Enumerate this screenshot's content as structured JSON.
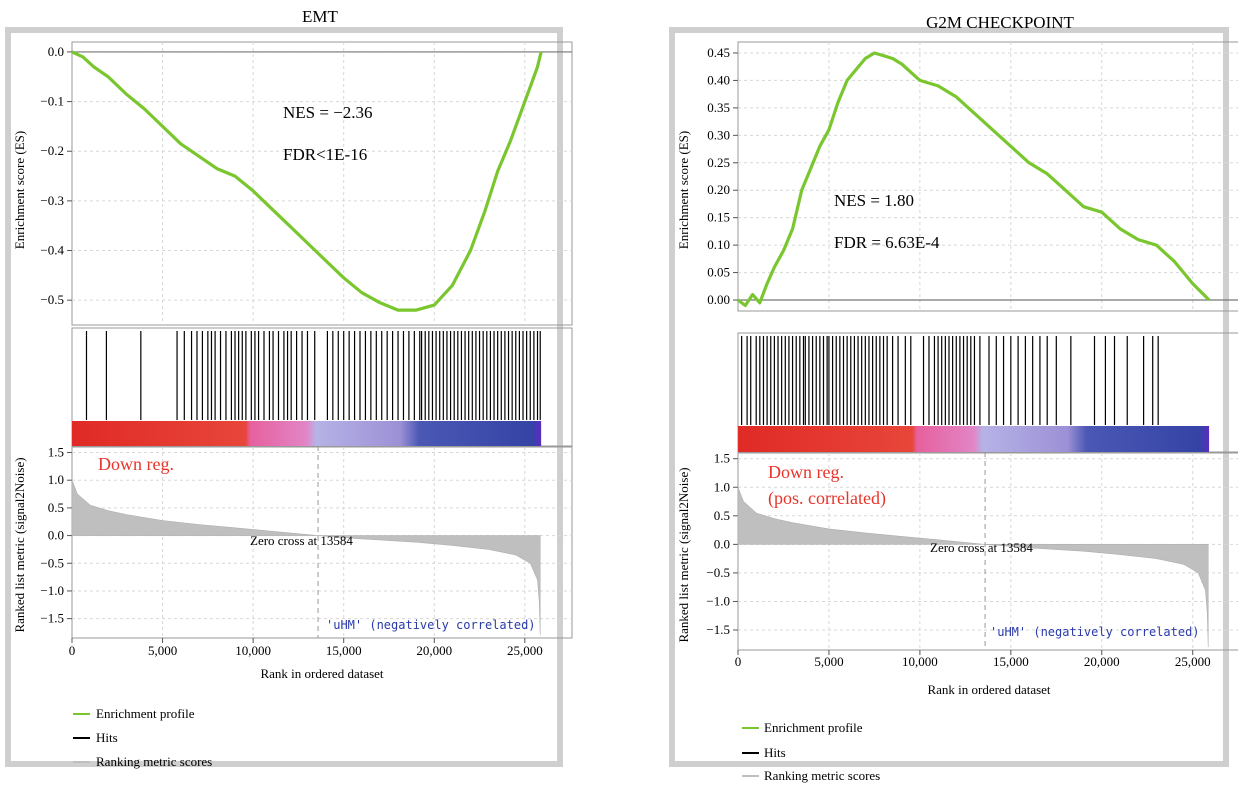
{
  "chart_data": [
    {
      "type": "line",
      "title": "EMT",
      "xlabel": "Rank in ordered dataset",
      "ylabel_es": "Enrichment score (ES)",
      "ylabel_metric": "Ranked list metric (signal2Noise)",
      "x_ticks": [
        "0",
        "5,000",
        "10,000",
        "15,000",
        "20,000",
        "25,000"
      ],
      "es_ticks": [
        "0.0",
        "−0.1",
        "−0.2",
        "−0.3",
        "−0.4",
        "−0.5"
      ],
      "es_ylim": [
        -0.55,
        0.02
      ],
      "metric_ticks": [
        "1.5",
        "1.0",
        "0.5",
        "0.0",
        "−0.5",
        "−1.0",
        "−1.5"
      ],
      "metric_ylim": [
        -1.85,
        1.6
      ],
      "xlim": [
        0,
        26500
      ],
      "nes_text": "NES = −2.36",
      "fdr_text": "FDR<1E-16",
      "reg_text": [
        "Down reg."
      ],
      "zero_cross_text": "Zero cross at 13584",
      "zero_cross": 13584,
      "neg_label": "'uHM' (negatively correlated)",
      "legend": [
        "Enrichment profile",
        "Hits",
        "Ranking metric scores"
      ],
      "colors": {
        "profile": "#7ac62e",
        "hits": "#000000",
        "metric": "#c0bfc0",
        "reg": "#e8352a",
        "neg": "#2a3aa8"
      },
      "es_profile": [
        [
          0,
          0.0
        ],
        [
          600,
          -0.01
        ],
        [
          1200,
          -0.03
        ],
        [
          2000,
          -0.05
        ],
        [
          3000,
          -0.085
        ],
        [
          4000,
          -0.115
        ],
        [
          5000,
          -0.15
        ],
        [
          6000,
          -0.185
        ],
        [
          7000,
          -0.21
        ],
        [
          8000,
          -0.235
        ],
        [
          9000,
          -0.25
        ],
        [
          10000,
          -0.28
        ],
        [
          11000,
          -0.315
        ],
        [
          12000,
          -0.35
        ],
        [
          13000,
          -0.385
        ],
        [
          14000,
          -0.42
        ],
        [
          15000,
          -0.455
        ],
        [
          16000,
          -0.485
        ],
        [
          17000,
          -0.505
        ],
        [
          18000,
          -0.52
        ],
        [
          19000,
          -0.52
        ],
        [
          20000,
          -0.51
        ],
        [
          21000,
          -0.47
        ],
        [
          22000,
          -0.4
        ],
        [
          22800,
          -0.32
        ],
        [
          23500,
          -0.24
        ],
        [
          24200,
          -0.18
        ],
        [
          24800,
          -0.12
        ],
        [
          25300,
          -0.07
        ],
        [
          25700,
          -0.03
        ],
        [
          25900,
          0.0
        ]
      ],
      "hits": [
        800,
        1900,
        3800,
        5800,
        6200,
        6600,
        6900,
        7200,
        7500,
        7700,
        7900,
        8200,
        8500,
        8800,
        9000,
        9200,
        9400,
        9600,
        9900,
        10100,
        10300,
        10600,
        10900,
        11100,
        11400,
        11700,
        11900,
        12100,
        12400,
        12700,
        13000,
        13400,
        14100,
        14400,
        14700,
        15000,
        15300,
        15600,
        15900,
        16200,
        16500,
        16800,
        17100,
        17400,
        17700,
        18000,
        18300,
        18600,
        18900,
        19200,
        19300,
        19500,
        19700,
        19900,
        20100,
        20300,
        20500,
        20700,
        20900,
        21100,
        21300,
        21500,
        21700,
        21900,
        22100,
        22300,
        22500,
        22700,
        22900,
        23100,
        23300,
        23500,
        23700,
        23900,
        24100,
        24300,
        24500,
        24700,
        24900,
        25100,
        25300,
        25500,
        25700,
        25850
      ],
      "metric": [
        [
          0,
          1.0
        ],
        [
          300,
          0.75
        ],
        [
          1000,
          0.55
        ],
        [
          2000,
          0.45
        ],
        [
          3000,
          0.38
        ],
        [
          5000,
          0.27
        ],
        [
          7000,
          0.2
        ],
        [
          9000,
          0.14
        ],
        [
          11000,
          0.08
        ],
        [
          13584,
          0.0
        ],
        [
          16000,
          -0.06
        ],
        [
          19000,
          -0.12
        ],
        [
          21000,
          -0.18
        ],
        [
          23000,
          -0.25
        ],
        [
          24500,
          -0.35
        ],
        [
          25300,
          -0.5
        ],
        [
          25700,
          -0.8
        ],
        [
          25800,
          -1.2
        ],
        [
          25850,
          -1.8
        ]
      ]
    },
    {
      "type": "line",
      "title": "G2M CHECKPOINT",
      "xlabel": "Rank in ordered dataset",
      "ylabel_es": "Enrichment score (ES)",
      "ylabel_metric": "Ranked list metric (signal2Noise)",
      "x_ticks": [
        "0",
        "5,000",
        "10,000",
        "15,000",
        "20,000",
        "25,000"
      ],
      "es_ticks": [
        "0.45",
        "0.40",
        "0.35",
        "0.30",
        "0.25",
        "0.20",
        "0.15",
        "0.10",
        "0.05",
        "0.00"
      ],
      "es_ylim": [
        -0.02,
        0.47
      ],
      "metric_ticks": [
        "1.5",
        "1.0",
        "0.5",
        "0.0",
        "−0.5",
        "−1.0",
        "−1.5"
      ],
      "metric_ylim": [
        -1.85,
        1.6
      ],
      "xlim": [
        0,
        26500
      ],
      "nes_text": "NES = 1.80",
      "fdr_text": "FDR = 6.63E-4",
      "reg_text": [
        "Down reg.",
        "(pos. correlated)"
      ],
      "zero_cross_text": "Zero cross at 13584",
      "zero_cross": 13584,
      "neg_label": "'uHM' (negatively correlated)",
      "legend": [
        "Enrichment profile",
        "Hits",
        "Ranking metric scores"
      ],
      "colors": {
        "profile": "#7ac62e",
        "hits": "#000000",
        "metric": "#c0bfc0",
        "reg": "#e8352a",
        "neg": "#2a3aa8"
      },
      "es_profile": [
        [
          0,
          0.0
        ],
        [
          400,
          -0.01
        ],
        [
          800,
          0.01
        ],
        [
          1200,
          -0.005
        ],
        [
          1600,
          0.03
        ],
        [
          2000,
          0.06
        ],
        [
          2500,
          0.09
        ],
        [
          3000,
          0.13
        ],
        [
          3500,
          0.2
        ],
        [
          4000,
          0.24
        ],
        [
          4500,
          0.28
        ],
        [
          5000,
          0.31
        ],
        [
          5500,
          0.36
        ],
        [
          6000,
          0.4
        ],
        [
          6500,
          0.42
        ],
        [
          7000,
          0.44
        ],
        [
          7500,
          0.45
        ],
        [
          8000,
          0.445
        ],
        [
          8500,
          0.44
        ],
        [
          9000,
          0.43
        ],
        [
          10000,
          0.4
        ],
        [
          11000,
          0.39
        ],
        [
          12000,
          0.37
        ],
        [
          13000,
          0.34
        ],
        [
          14000,
          0.31
        ],
        [
          15000,
          0.28
        ],
        [
          16000,
          0.25
        ],
        [
          17000,
          0.23
        ],
        [
          18000,
          0.2
        ],
        [
          19000,
          0.17
        ],
        [
          20000,
          0.16
        ],
        [
          21000,
          0.13
        ],
        [
          22000,
          0.11
        ],
        [
          23000,
          0.1
        ],
        [
          24000,
          0.07
        ],
        [
          25000,
          0.03
        ],
        [
          25900,
          0.0
        ]
      ],
      "hits": [
        200,
        500,
        700,
        1000,
        1200,
        1400,
        1600,
        1800,
        2000,
        2200,
        2400,
        2600,
        2800,
        3000,
        3200,
        3400,
        3600,
        3700,
        3900,
        4100,
        4300,
        4500,
        4700,
        4900,
        5000,
        5200,
        5400,
        5600,
        5800,
        6000,
        6200,
        6400,
        6600,
        6800,
        7000,
        7200,
        7400,
        7600,
        7800,
        8000,
        8200,
        8500,
        8800,
        9200,
        9500,
        10200,
        10500,
        10800,
        11000,
        11200,
        11400,
        11600,
        11800,
        12000,
        12200,
        12400,
        12600,
        12800,
        13000,
        13300,
        13800,
        14200,
        14600,
        15000,
        15400,
        15800,
        16200,
        16600,
        17000,
        17500,
        18300,
        19600,
        20200,
        20700,
        21400,
        22300,
        22800,
        23100
      ],
      "metric": [
        [
          0,
          1.0
        ],
        [
          300,
          0.75
        ],
        [
          1000,
          0.55
        ],
        [
          2000,
          0.45
        ],
        [
          3000,
          0.38
        ],
        [
          5000,
          0.27
        ],
        [
          7000,
          0.2
        ],
        [
          9000,
          0.14
        ],
        [
          11000,
          0.08
        ],
        [
          13584,
          0.0
        ],
        [
          16000,
          -0.06
        ],
        [
          19000,
          -0.12
        ],
        [
          21000,
          -0.18
        ],
        [
          23000,
          -0.25
        ],
        [
          24500,
          -0.35
        ],
        [
          25300,
          -0.5
        ],
        [
          25700,
          -0.8
        ],
        [
          25800,
          -1.2
        ],
        [
          25850,
          -1.8
        ]
      ]
    }
  ]
}
